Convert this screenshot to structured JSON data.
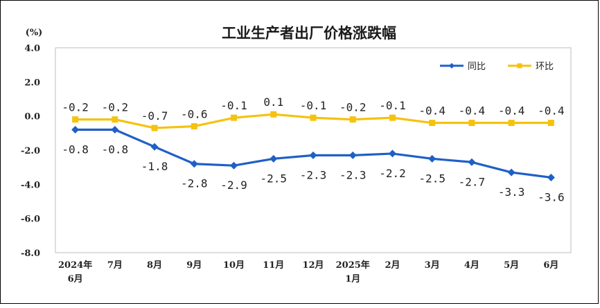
{
  "chart_data": {
    "type": "line",
    "title": "工业生产者出厂价格涨跌幅",
    "unit": "(%)",
    "categories": [
      [
        "2024年",
        "6月"
      ],
      [
        "7月"
      ],
      [
        "8月"
      ],
      [
        "9月"
      ],
      [
        "10月"
      ],
      [
        "11月"
      ],
      [
        "12月"
      ],
      [
        "2025年",
        "1月"
      ],
      [
        "2月"
      ],
      [
        "3月"
      ],
      [
        "4月"
      ],
      [
        "5月"
      ],
      [
        "6月"
      ]
    ],
    "ylim": [
      -8.0,
      4.0
    ],
    "yticks": [
      "4.0",
      "2.0",
      "0.0",
      "-2.0",
      "-4.0",
      "-6.0",
      "-8.0"
    ],
    "ytick_values": [
      4,
      2,
      0,
      -2,
      -4,
      -6,
      -8
    ],
    "legend_position": "top-right",
    "grid": false,
    "series": [
      {
        "name": "同比",
        "color": "#1f5fc8",
        "marker": "diamond",
        "values": [
          -0.8,
          -0.8,
          -1.8,
          -2.8,
          -2.9,
          -2.5,
          -2.3,
          -2.3,
          -2.2,
          -2.5,
          -2.7,
          -3.3,
          -3.6
        ],
        "labels": [
          "-0.8",
          "-0.8",
          "-1.8",
          "-2.8",
          "-2.9",
          "-2.5",
          "-2.3",
          "-2.3",
          "-2.2",
          "-2.5",
          "-2.7",
          "-3.3",
          "-3.6"
        ]
      },
      {
        "name": "环比",
        "color": "#f5c20e",
        "marker": "square",
        "values": [
          -0.2,
          -0.2,
          -0.7,
          -0.6,
          -0.1,
          0.1,
          -0.1,
          -0.2,
          -0.1,
          -0.4,
          -0.4,
          -0.4,
          -0.4
        ],
        "labels": [
          "-0.2",
          "-0.2",
          "-0.7",
          "-0.6",
          "-0.1",
          "0.1",
          "-0.1",
          "-0.2",
          "-0.1",
          "-0.4",
          "-0.4",
          "-0.4",
          "-0.4"
        ]
      }
    ]
  }
}
